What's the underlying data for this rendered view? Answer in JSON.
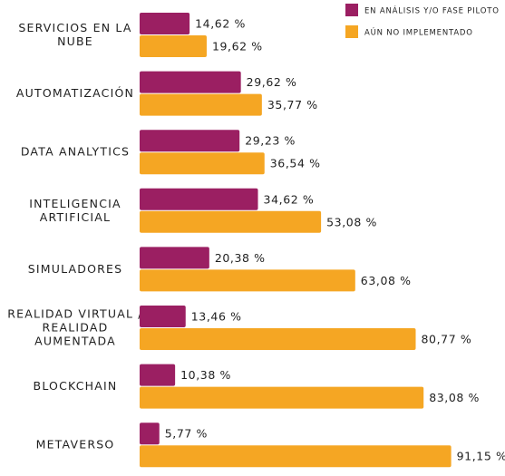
{
  "chart_data": {
    "type": "bar",
    "orientation": "horizontal",
    "categories": [
      [
        "SERVICIOS EN LA",
        "NUBE"
      ],
      [
        "AUTOMATIZACIÓN"
      ],
      [
        "DATA ANALYTICS"
      ],
      [
        "INTELIGENCIA",
        "ARTIFICIAL"
      ],
      [
        "SIMULADORES"
      ],
      [
        "REALIDAD VIRTUAL /",
        "REALIDAD",
        "AUMENTADA"
      ],
      [
        "BLOCKCHAIN"
      ],
      [
        "METAVERSO"
      ]
    ],
    "series": [
      {
        "name": "EN ANÁLISIS Y/O FASE PILOTO",
        "color": "#9b1f62",
        "values": [
          14.62,
          29.62,
          29.23,
          34.62,
          20.38,
          13.46,
          10.38,
          5.77
        ],
        "labels": [
          "14,62 %",
          "29,62 %",
          "29,23 %",
          "34,62 %",
          "20,38 %",
          "13,46 %",
          "10,38 %",
          "5,77 %"
        ]
      },
      {
        "name": "AÚN NO IMPLEMENTADO",
        "color": "#f5a623",
        "values": [
          19.62,
          35.77,
          36.54,
          53.08,
          63.08,
          80.77,
          83.08,
          91.15
        ],
        "labels": [
          "19,62 %",
          "35,77 %",
          "36,54 %",
          "53,08 %",
          "63,08 %",
          "80,77 %",
          "83,08 %",
          "91,15 %"
        ]
      }
    ],
    "xlim": [
      0,
      100
    ],
    "grid": false,
    "legend": "top-right"
  }
}
